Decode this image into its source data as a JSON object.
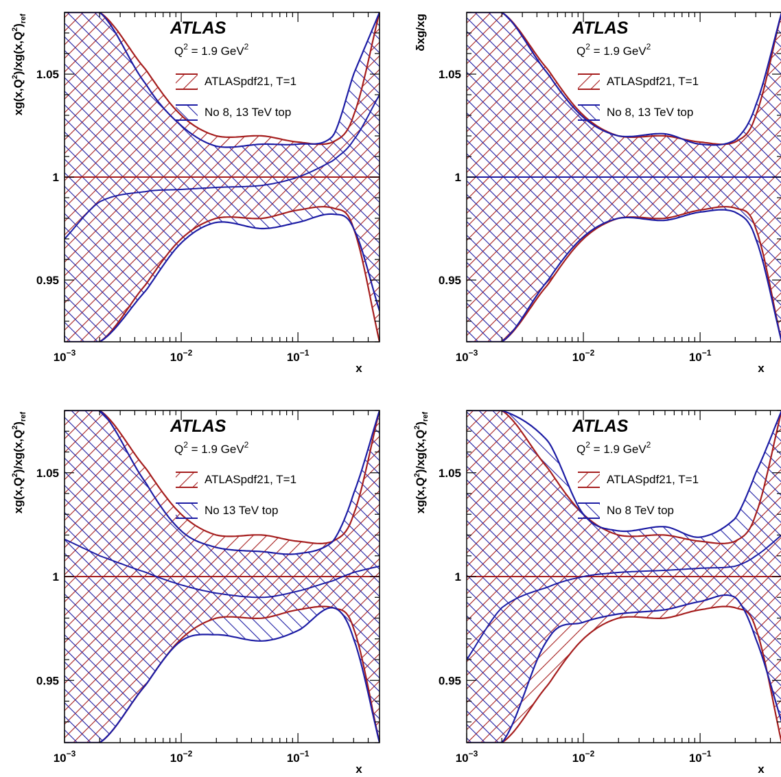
{
  "figure": {
    "colors": {
      "red": "#a51d1d",
      "blue": "#1c1ca4",
      "frame": "#000000"
    }
  },
  "chart_data": [
    {
      "type": "area",
      "panel": "top-left",
      "title": "ATLAS",
      "subtitle": "Q² = 1.9 GeV²",
      "subtitle_parts": {
        "q": "Q",
        "exp": "2",
        "eq": "= 1.9 GeV",
        "exp2": "2"
      },
      "xlabel": "x",
      "ylabel": "xg(x,Q²)/xg(x,Q²)ref",
      "ylabel_parts": {
        "main": "xg(x,Q",
        "e1": "2",
        "mid": ")/xg(x,Q",
        "e2": "2",
        "end": ")",
        "sub": "ref"
      },
      "x_scale": "log",
      "xlim": [
        0.001,
        0.5
      ],
      "ylim": [
        0.92,
        1.08
      ],
      "x_ticks": [
        {
          "pos": 0.001,
          "base": "10",
          "exp": "−3"
        },
        {
          "pos": 0.01,
          "base": "10",
          "exp": "−2"
        },
        {
          "pos": 0.1,
          "base": "10",
          "exp": "−1"
        }
      ],
      "y_ticks": [
        "0.95",
        "1",
        "1.05"
      ],
      "legend": [
        "ATLASpdf21, T=1",
        "No 8, 13 TeV top"
      ],
      "legend_placement": "top-center",
      "x": [
        0.001,
        0.002,
        0.005,
        0.01,
        0.02,
        0.05,
        0.1,
        0.2,
        0.3,
        0.5
      ],
      "series": [
        {
          "name": "ATLASpdf21, T=1",
          "color": "#a51d1d",
          "hatch": "diag-up",
          "center": [
            1,
            1,
            1,
            1,
            1,
            1,
            1,
            1,
            1,
            1
          ],
          "upper": [
            1.08,
            1.08,
            1.052,
            1.03,
            1.02,
            1.02,
            1.017,
            1.017,
            1.03,
            1.08
          ],
          "lower": [
            0.92,
            0.92,
            0.948,
            0.97,
            0.98,
            0.98,
            0.984,
            0.985,
            0.975,
            0.92
          ]
        },
        {
          "name": "No 8, 13 TeV top",
          "color": "#1c1ca4",
          "hatch": "diag-down",
          "center": [
            0.97,
            0.988,
            0.993,
            0.994,
            0.995,
            0.996,
            1.0,
            1.008,
            1.018,
            1.04
          ],
          "upper": [
            1.08,
            1.08,
            1.045,
            1.025,
            1.015,
            1.016,
            1.016,
            1.02,
            1.05,
            1.08
          ],
          "lower": [
            0.92,
            0.92,
            0.945,
            0.968,
            0.978,
            0.975,
            0.978,
            0.982,
            0.975,
            0.935
          ]
        }
      ]
    },
    {
      "type": "area",
      "panel": "top-right",
      "title": "ATLAS",
      "subtitle": "Q² = 1.9 GeV²",
      "subtitle_parts": {
        "q": "Q",
        "exp": "2",
        "eq": "= 1.9 GeV",
        "exp2": "2"
      },
      "xlabel": "x",
      "ylabel": "δxg/xg",
      "ylabel_parts": {
        "main": "δxg/xg",
        "e1": "",
        "mid": "",
        "e2": "",
        "end": "",
        "sub": ""
      },
      "x_scale": "log",
      "xlim": [
        0.001,
        0.5
      ],
      "ylim": [
        0.92,
        1.08
      ],
      "x_ticks": [
        {
          "pos": 0.001,
          "base": "10",
          "exp": "−3"
        },
        {
          "pos": 0.01,
          "base": "10",
          "exp": "−2"
        },
        {
          "pos": 0.1,
          "base": "10",
          "exp": "−1"
        }
      ],
      "y_ticks": [
        "0.95",
        "1",
        "1.05"
      ],
      "legend": [
        "ATLASpdf21, T=1",
        "No 8, 13 TeV top"
      ],
      "legend_placement": "top-center",
      "x": [
        0.001,
        0.002,
        0.005,
        0.01,
        0.02,
        0.05,
        0.1,
        0.2,
        0.3,
        0.5
      ],
      "series": [
        {
          "name": "ATLASpdf21, T=1",
          "color": "#a51d1d",
          "hatch": "diag-up",
          "center": [
            1,
            1,
            1,
            1,
            1,
            1,
            1,
            1,
            1,
            1
          ],
          "upper": [
            1.08,
            1.08,
            1.052,
            1.03,
            1.02,
            1.02,
            1.017,
            1.017,
            1.03,
            1.08
          ],
          "lower": [
            0.92,
            0.92,
            0.948,
            0.97,
            0.98,
            0.98,
            0.984,
            0.985,
            0.975,
            0.92
          ]
        },
        {
          "name": "No 8, 13 TeV top",
          "color": "#1c1ca4",
          "hatch": "diag-down",
          "center": [
            1,
            1,
            1,
            1,
            1,
            1,
            1,
            1,
            1,
            1
          ],
          "upper": [
            1.08,
            1.08,
            1.05,
            1.029,
            1.02,
            1.021,
            1.016,
            1.018,
            1.035,
            1.08
          ],
          "lower": [
            0.92,
            0.92,
            0.95,
            0.971,
            0.98,
            0.979,
            0.983,
            0.983,
            0.97,
            0.92
          ]
        }
      ]
    },
    {
      "type": "area",
      "panel": "bottom-left",
      "title": "ATLAS",
      "subtitle": "Q² = 1.9 GeV²",
      "subtitle_parts": {
        "q": "Q",
        "exp": "2",
        "eq": "= 1.9 GeV",
        "exp2": "2"
      },
      "xlabel": "x",
      "ylabel": "xg(x,Q²)/xg(x,Q²)ref",
      "ylabel_parts": {
        "main": "xg(x,Q",
        "e1": "2",
        "mid": ")/xg(x,Q",
        "e2": "2",
        "end": ")",
        "sub": "ref"
      },
      "x_scale": "log",
      "xlim": [
        0.001,
        0.5
      ],
      "ylim": [
        0.92,
        1.08
      ],
      "x_ticks": [
        {
          "pos": 0.001,
          "base": "10",
          "exp": "−3"
        },
        {
          "pos": 0.01,
          "base": "10",
          "exp": "−2"
        },
        {
          "pos": 0.1,
          "base": "10",
          "exp": "−1"
        }
      ],
      "y_ticks": [
        "0.95",
        "1",
        "1.05"
      ],
      "legend": [
        "ATLASpdf21, T=1",
        "No 13 TeV top"
      ],
      "legend_placement": "top-center",
      "x": [
        0.001,
        0.002,
        0.005,
        0.01,
        0.02,
        0.05,
        0.1,
        0.2,
        0.3,
        0.5
      ],
      "series": [
        {
          "name": "ATLASpdf21, T=1",
          "color": "#a51d1d",
          "hatch": "diag-up",
          "center": [
            1,
            1,
            1,
            1,
            1,
            1,
            1,
            1,
            1,
            1
          ],
          "upper": [
            1.08,
            1.08,
            1.052,
            1.03,
            1.02,
            1.02,
            1.017,
            1.017,
            1.03,
            1.08
          ],
          "lower": [
            0.92,
            0.92,
            0.948,
            0.97,
            0.98,
            0.98,
            0.984,
            0.985,
            0.975,
            0.92
          ]
        },
        {
          "name": "No 13 TeV top",
          "color": "#1c1ca4",
          "hatch": "diag-down",
          "center": [
            1.018,
            1.01,
            1.002,
            0.996,
            0.992,
            0.99,
            0.993,
            0.998,
            1.002,
            1.005
          ],
          "upper": [
            1.08,
            1.08,
            1.045,
            1.022,
            1.014,
            1.012,
            1.011,
            1.017,
            1.04,
            1.08
          ],
          "lower": [
            0.92,
            0.92,
            0.948,
            0.969,
            0.972,
            0.969,
            0.974,
            0.985,
            0.97,
            0.92
          ]
        }
      ]
    },
    {
      "type": "area",
      "panel": "bottom-right",
      "title": "ATLAS",
      "subtitle": "Q² = 1.9 GeV²",
      "subtitle_parts": {
        "q": "Q",
        "exp": "2",
        "eq": "= 1.9 GeV",
        "exp2": "2"
      },
      "xlabel": "x",
      "ylabel": "xg(x,Q²)/xg(x,Q²)ref",
      "ylabel_parts": {
        "main": "xg(x,Q",
        "e1": "2",
        "mid": ")/xg(x,Q",
        "e2": "2",
        "end": ")",
        "sub": "ref"
      },
      "x_scale": "log",
      "xlim": [
        0.001,
        0.5
      ],
      "ylim": [
        0.92,
        1.08
      ],
      "x_ticks": [
        {
          "pos": 0.001,
          "base": "10",
          "exp": "−3"
        },
        {
          "pos": 0.01,
          "base": "10",
          "exp": "−2"
        },
        {
          "pos": 0.1,
          "base": "10",
          "exp": "−1"
        }
      ],
      "y_ticks": [
        "0.95",
        "1",
        "1.05"
      ],
      "legend": [
        "ATLASpdf21, T=1",
        "No 8 TeV top"
      ],
      "legend_placement": "top-center",
      "x": [
        0.001,
        0.002,
        0.005,
        0.01,
        0.02,
        0.05,
        0.1,
        0.2,
        0.3,
        0.5
      ],
      "series": [
        {
          "name": "ATLASpdf21, T=1",
          "color": "#a51d1d",
          "hatch": "diag-up",
          "center": [
            1,
            1,
            1,
            1,
            1,
            1,
            1,
            1,
            1,
            1
          ],
          "upper": [
            1.08,
            1.08,
            1.052,
            1.03,
            1.02,
            1.02,
            1.017,
            1.017,
            1.03,
            1.08
          ],
          "lower": [
            0.92,
            0.92,
            0.948,
            0.97,
            0.98,
            0.98,
            0.984,
            0.985,
            0.975,
            0.92
          ]
        },
        {
          "name": "No 8 TeV top",
          "color": "#1c1ca4",
          "hatch": "diag-down",
          "center": [
            0.96,
            0.985,
            0.995,
            1.0,
            1.002,
            1.003,
            1.004,
            1.005,
            1.01,
            1.02
          ],
          "upper": [
            1.08,
            1.08,
            1.065,
            1.03,
            1.022,
            1.024,
            1.019,
            1.028,
            1.05,
            1.08
          ],
          "lower": [
            0.92,
            0.92,
            0.97,
            0.978,
            0.982,
            0.984,
            0.988,
            0.99,
            0.97,
            0.93
          ]
        }
      ]
    }
  ]
}
